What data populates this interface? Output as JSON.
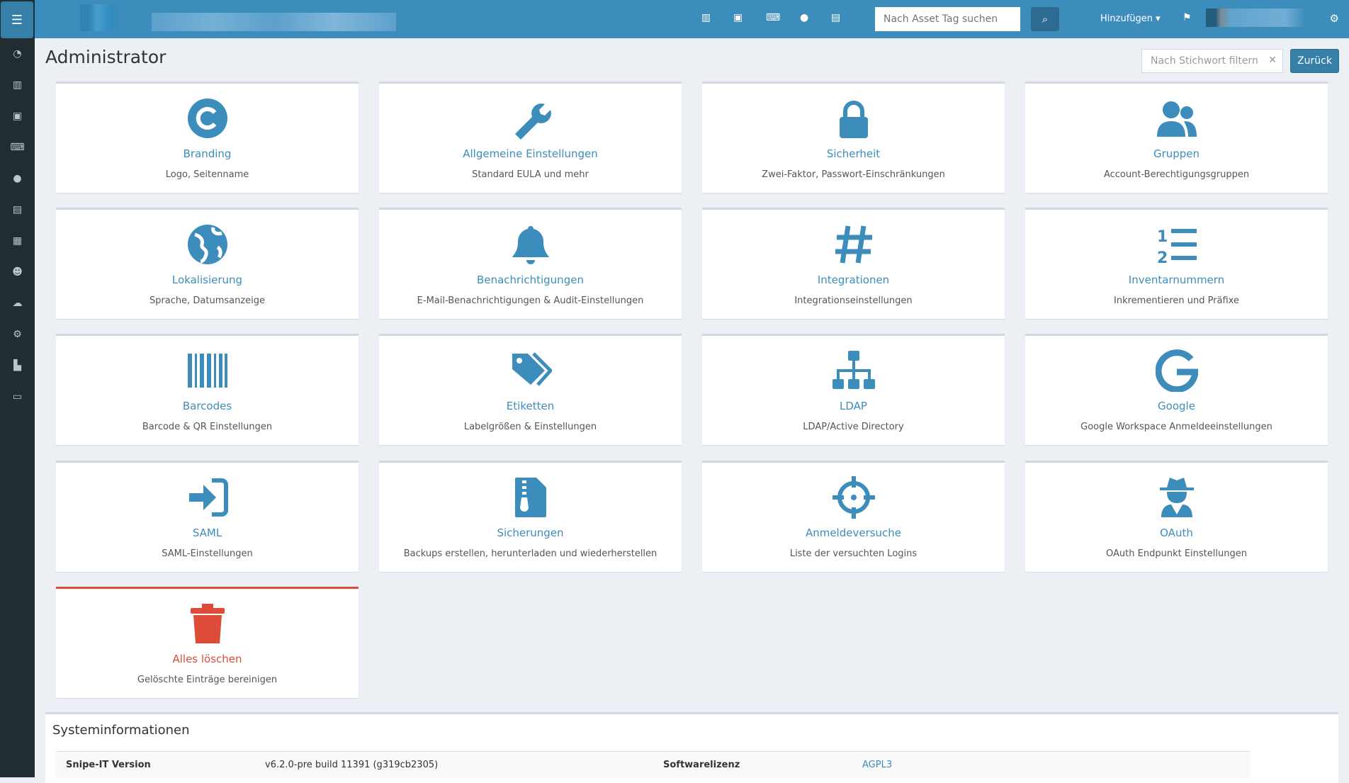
{
  "header": {
    "asset_search_placeholder": "Nach Asset Tag suchen",
    "add_label": "Hinzufügen ▾"
  },
  "page": {
    "title": "Administrator",
    "filter_placeholder": "Nach Stichwort filtern",
    "back_label": "Zurück"
  },
  "colors": {
    "primary": "#3c8dbc",
    "danger": "#dd4b39",
    "sidebar": "#222d32"
  },
  "cards": [
    {
      "icon": "copyright-icon",
      "title": "Branding",
      "desc": "Logo, Seitenname"
    },
    {
      "icon": "wrench-icon",
      "title": "Allgemeine Einstellungen",
      "desc": "Standard EULA und mehr"
    },
    {
      "icon": "lock-icon",
      "title": "Sicherheit",
      "desc": "Zwei-Faktor, Passwort-Einschränkungen"
    },
    {
      "icon": "users-icon",
      "title": "Gruppen",
      "desc": "Account-Berechtigungsgruppen"
    },
    {
      "icon": "globe-icon",
      "title": "Lokalisierung",
      "desc": "Sprache, Datumsanzeige"
    },
    {
      "icon": "bell-icon",
      "title": "Benachrichtigungen",
      "desc": "E-Mail-Benachrichtigungen & Audit-Einstellungen"
    },
    {
      "icon": "hashtag-icon",
      "title": "Integrationen",
      "desc": "Integrationseinstellungen"
    },
    {
      "icon": "list-ol-icon",
      "title": "Inventarnummern",
      "desc": "Inkrementieren und Präfixe"
    },
    {
      "icon": "barcode-icon",
      "title": "Barcodes",
      "desc": "Barcode & QR Einstellungen"
    },
    {
      "icon": "tags-icon",
      "title": "Etiketten",
      "desc": "Labelgrößen & Einstellungen"
    },
    {
      "icon": "sitemap-icon",
      "title": "LDAP",
      "desc": "LDAP/Active Directory"
    },
    {
      "icon": "google-icon",
      "title": "Google",
      "desc": "Google Workspace Anmeldeeinstellungen"
    },
    {
      "icon": "sign-in-icon",
      "title": "SAML",
      "desc": "SAML-Einstellungen"
    },
    {
      "icon": "file-archive-icon",
      "title": "Sicherungen",
      "desc": "Backups erstellen, herunterladen und wiederherstellen"
    },
    {
      "icon": "crosshairs-icon",
      "title": "Anmeldeversuche",
      "desc": "Liste der versuchten Logins"
    },
    {
      "icon": "user-secret-icon",
      "title": "OAuth",
      "desc": "OAuth Endpunkt Einstellungen"
    },
    {
      "icon": "trash-icon",
      "title": "Alles löschen",
      "desc": "Gelöschte Einträge bereinigen"
    }
  ],
  "system": {
    "title": "Systeminformationen",
    "version_label": "Snipe-IT Version",
    "version": "v6.2.0-pre build 11391 (g319cb2305)",
    "license_label": "Softwarelizenz",
    "license": "AGPL3"
  }
}
